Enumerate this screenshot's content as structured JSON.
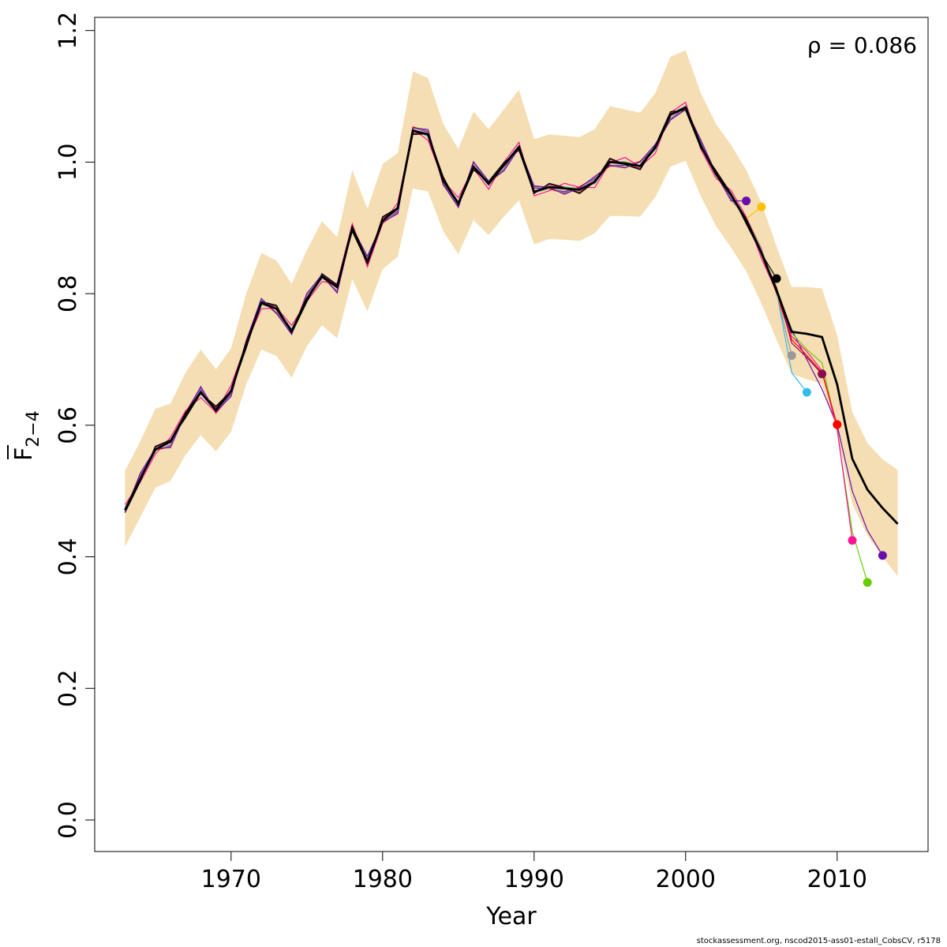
{
  "chart_data": {
    "type": "line",
    "xlabel": "Year",
    "ylabel_main": "F",
    "ylabel_sub": "2−4",
    "xlim": [
      1961.0,
      2016.0
    ],
    "ylim": [
      -0.048,
      1.22
    ],
    "xticks": [
      1970,
      1980,
      1990,
      2000,
      2010
    ],
    "yticks": [
      0.0,
      0.2,
      0.4,
      0.6,
      0.8,
      1.0,
      1.2
    ],
    "ytick_labels": [
      "0.0",
      "0.2",
      "0.4",
      "0.6",
      "0.8",
      "1.0",
      "1.2"
    ],
    "annotation": "ρ = 0.086",
    "band_color": "#F5DEB3",
    "base": {
      "x": [
        1963,
        1964,
        1965,
        1966,
        1967,
        1968,
        1969,
        1970,
        1971,
        1972,
        1973,
        1974,
        1975,
        1976,
        1977,
        1978,
        1979,
        1980,
        1981,
        1982,
        1983,
        1984,
        1985,
        1986,
        1987,
        1988,
        1989,
        1990,
        1991,
        1992,
        1993,
        1994,
        1995,
        1996,
        1997,
        1998,
        1999,
        2000,
        2001,
        2002,
        2003,
        2004,
        2005,
        2006,
        2007,
        2008,
        2009,
        2010,
        2011,
        2012,
        2013,
        2014
      ],
      "y": [
        0.471,
        0.518,
        0.563,
        0.575,
        0.617,
        0.65,
        0.623,
        0.652,
        0.723,
        0.786,
        0.777,
        0.743,
        0.792,
        0.826,
        0.81,
        0.9,
        0.848,
        0.911,
        0.93,
        1.048,
        1.042,
        0.972,
        0.937,
        0.993,
        0.967,
        0.995,
        1.023,
        0.955,
        0.962,
        0.96,
        0.958,
        0.97,
        1.0,
        0.998,
        0.994,
        1.022,
        1.072,
        1.083,
        1.025,
        0.982,
        0.95,
        0.912,
        0.862,
        0.805,
        0.742,
        0.739,
        0.734,
        0.662,
        0.549,
        0.502,
        0.474,
        0.45
      ],
      "lower": [
        0.415,
        0.46,
        0.505,
        0.515,
        0.555,
        0.585,
        0.56,
        0.59,
        0.662,
        0.715,
        0.705,
        0.672,
        0.72,
        0.752,
        0.732,
        0.822,
        0.773,
        0.837,
        0.856,
        0.96,
        0.955,
        0.895,
        0.86,
        0.912,
        0.889,
        0.917,
        0.942,
        0.875,
        0.883,
        0.882,
        0.88,
        0.892,
        0.918,
        0.918,
        0.917,
        0.947,
        0.993,
        1.002,
        0.948,
        0.903,
        0.87,
        0.834,
        0.785,
        0.73,
        0.678,
        0.67,
        0.663,
        0.588,
        0.48,
        0.432,
        0.4,
        0.37
      ],
      "upper": [
        0.531,
        0.575,
        0.625,
        0.633,
        0.68,
        0.715,
        0.685,
        0.717,
        0.8,
        0.862,
        0.85,
        0.815,
        0.866,
        0.91,
        0.886,
        0.988,
        0.929,
        0.997,
        1.014,
        1.138,
        1.128,
        1.058,
        1.02,
        1.077,
        1.05,
        1.08,
        1.11,
        1.035,
        1.042,
        1.04,
        1.038,
        1.05,
        1.085,
        1.08,
        1.075,
        1.105,
        1.16,
        1.17,
        1.105,
        1.058,
        1.026,
        0.988,
        0.938,
        0.872,
        0.81,
        0.81,
        0.808,
        0.737,
        0.62,
        0.573,
        0.548,
        0.532
      ]
    },
    "peels": [
      {
        "color": "#6A0DAD",
        "end_x": 2013,
        "end_y": 0.402,
        "tail": [
          0.745,
          0.7,
          0.655,
          0.6,
          0.5,
          0.44
        ]
      },
      {
        "color": "#66CC00",
        "end_x": 2012,
        "end_y": 0.361,
        "tail": [
          0.74,
          0.715,
          0.695,
          0.592,
          0.438
        ]
      },
      {
        "color": "#FF1493",
        "end_x": 2011,
        "end_y": 0.425,
        "tail": [
          0.735,
          0.712,
          0.683,
          0.595
        ]
      },
      {
        "color": "#FF0000",
        "end_x": 2010,
        "end_y": 0.601,
        "tail": [
          0.73,
          0.706,
          0.68
        ]
      },
      {
        "color": "#8B0A50",
        "end_x": 2009,
        "end_y": 0.678,
        "tail": [
          0.725,
          0.703
        ]
      },
      {
        "color": "#33BBEE",
        "end_x": 2008,
        "end_y": 0.65,
        "tail": [
          0.68
        ]
      },
      {
        "color": "#999999",
        "end_x": 2007,
        "end_y": 0.706,
        "tail": []
      },
      {
        "color": "#000000",
        "end_x": 2006,
        "end_y": 0.823,
        "tail": []
      },
      {
        "color": "#FFC000",
        "end_x": 2005,
        "end_y": 0.932,
        "tail": []
      },
      {
        "color": "#6A0DAD",
        "end_x": 2004,
        "end_y": 0.941,
        "tail": []
      }
    ]
  },
  "footer": "stockassessment.org, nscod2015-ass01-estall_CobsCV, r5178"
}
